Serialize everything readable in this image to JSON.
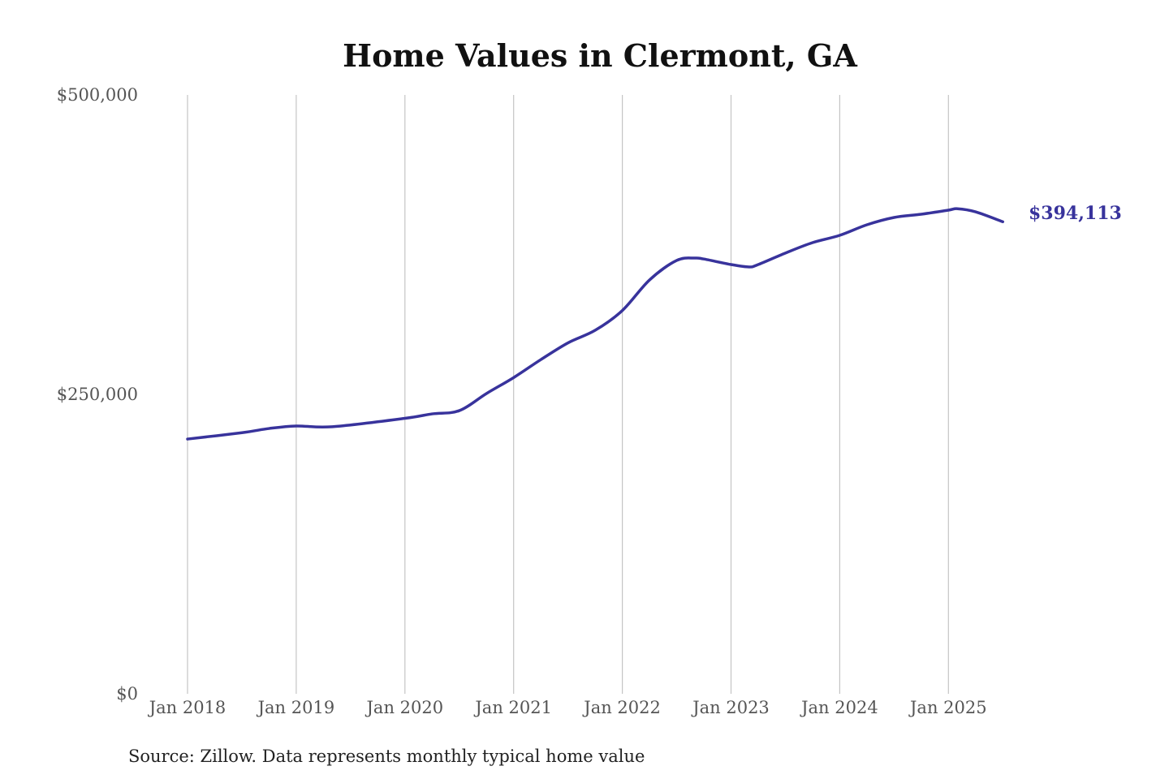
{
  "chart_data": {
    "type": "line",
    "title": "Home Values in Clermont, GA",
    "source": "Source: Zillow. Data represents monthly typical home value",
    "ylim": [
      0,
      500000
    ],
    "y_ticks": [
      0,
      250000,
      500000
    ],
    "y_tick_labels": [
      "$0",
      "$250,000",
      "$500,000"
    ],
    "x_tick_labels": [
      "Jan 2018",
      "Jan 2019",
      "Jan 2020",
      "Jan 2021",
      "Jan 2022",
      "Jan 2023",
      "Jan 2024",
      "Jan 2025"
    ],
    "x_ticks": [
      "2018-01",
      "2019-01",
      "2020-01",
      "2021-01",
      "2022-01",
      "2023-01",
      "2024-01",
      "2025-01"
    ],
    "grid": "vertical",
    "line_color": "#38339c",
    "end_label": "$394,113",
    "series": [
      {
        "x": [
          "2018-01",
          "2018-07",
          "2018-10",
          "2019-01",
          "2019-05",
          "2020-01",
          "2020-04",
          "2020-07",
          "2020-10",
          "2021-01",
          "2021-04",
          "2021-07",
          "2021-10",
          "2022-01",
          "2022-04",
          "2022-07",
          "2022-09",
          "2022-10",
          "2023-01",
          "2023-03",
          "2023-04",
          "2023-07",
          "2023-10",
          "2024-01",
          "2024-04",
          "2024-07",
          "2024-10",
          "2025-01",
          "2025-02",
          "2025-04",
          "2025-07"
        ],
        "y": [
          212700,
          218000,
          221500,
          223600,
          223000,
          230000,
          233700,
          236400,
          250700,
          264000,
          279000,
          293000,
          303500,
          320000,
          345500,
          361800,
          363800,
          363000,
          358400,
          356400,
          358400,
          368000,
          376700,
          382800,
          391600,
          397700,
          400400,
          403800,
          405000,
          402400,
          394113
        ]
      }
    ]
  }
}
